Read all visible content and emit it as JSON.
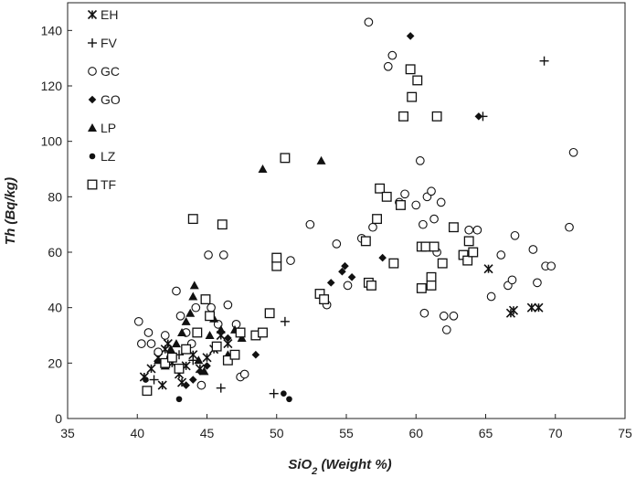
{
  "chart_data": {
    "type": "scatter",
    "title": "",
    "xlabel": "SiO2 (Weight %)",
    "xlabel_main": "SiO",
    "xlabel_sub": "2",
    "xlabel_rest": " (Weight %)",
    "ylabel": "Th (Bq/kg)",
    "xlim": [
      35,
      75
    ],
    "ylim": [
      0,
      150
    ],
    "x_ticks": [
      35,
      40,
      45,
      50,
      55,
      60,
      65,
      70,
      75
    ],
    "y_ticks": [
      0,
      20,
      40,
      60,
      80,
      100,
      120,
      140
    ],
    "grid": false,
    "legend_position": "top-left",
    "series": [
      {
        "name": "EH",
        "marker": "asterisk",
        "points": [
          [
            40.5,
            15
          ],
          [
            41,
            18
          ],
          [
            41.5,
            22
          ],
          [
            42,
            25
          ],
          [
            42.5,
            20
          ],
          [
            43,
            16
          ],
          [
            43.5,
            19
          ],
          [
            44,
            23
          ],
          [
            44.5,
            18
          ],
          [
            45,
            22
          ],
          [
            45.5,
            25
          ],
          [
            46,
            30
          ],
          [
            46.5,
            27
          ],
          [
            41.8,
            12
          ],
          [
            42.2,
            27
          ],
          [
            43.2,
            13
          ],
          [
            65.2,
            54
          ],
          [
            66.8,
            38
          ],
          [
            67,
            39
          ],
          [
            68.3,
            40
          ],
          [
            68.8,
            40
          ]
        ]
      },
      {
        "name": "FV",
        "marker": "plus",
        "points": [
          [
            41.2,
            14
          ],
          [
            43,
            23
          ],
          [
            44,
            21
          ],
          [
            46,
            11
          ],
          [
            49.8,
            9
          ],
          [
            50.6,
            35
          ],
          [
            64.8,
            109
          ],
          [
            69.2,
            129
          ]
        ]
      },
      {
        "name": "GC",
        "marker": "circle",
        "points": [
          [
            40.1,
            35
          ],
          [
            40.3,
            27
          ],
          [
            40.8,
            31
          ],
          [
            41,
            27
          ],
          [
            41.5,
            24
          ],
          [
            42,
            30
          ],
          [
            42.4,
            22
          ],
          [
            42.8,
            46
          ],
          [
            43.1,
            37
          ],
          [
            43.5,
            31
          ],
          [
            43.9,
            27
          ],
          [
            44.2,
            40
          ],
          [
            44.6,
            12
          ],
          [
            45.1,
            59
          ],
          [
            45.3,
            40
          ],
          [
            45.8,
            34
          ],
          [
            46.2,
            59
          ],
          [
            46.5,
            41
          ],
          [
            47.1,
            34
          ],
          [
            47.4,
            15
          ],
          [
            47.7,
            16
          ],
          [
            51,
            57
          ],
          [
            52.4,
            70
          ],
          [
            53.6,
            41
          ],
          [
            54.3,
            63
          ],
          [
            55.1,
            48
          ],
          [
            56.1,
            65
          ],
          [
            56.6,
            143
          ],
          [
            56.9,
            69
          ],
          [
            58,
            127
          ],
          [
            58.3,
            131
          ],
          [
            58.8,
            78
          ],
          [
            59.2,
            81
          ],
          [
            60,
            77
          ],
          [
            60.3,
            93
          ],
          [
            60.5,
            70
          ],
          [
            60.6,
            38
          ],
          [
            60.8,
            80
          ],
          [
            61.1,
            82
          ],
          [
            61.3,
            72
          ],
          [
            61.5,
            60
          ],
          [
            61.8,
            78
          ],
          [
            62,
            37
          ],
          [
            62.2,
            32
          ],
          [
            62.7,
            37
          ],
          [
            63.8,
            68
          ],
          [
            64.4,
            68
          ],
          [
            65.4,
            44
          ],
          [
            66.1,
            59
          ],
          [
            66.6,
            48
          ],
          [
            66.9,
            50
          ],
          [
            67.1,
            66
          ],
          [
            68.4,
            61
          ],
          [
            68.7,
            49
          ],
          [
            69.3,
            55
          ],
          [
            69.7,
            55
          ],
          [
            71,
            69
          ],
          [
            71.3,
            96
          ]
        ]
      },
      {
        "name": "GO",
        "marker": "diamond",
        "points": [
          [
            43.5,
            12
          ],
          [
            44,
            14
          ],
          [
            44.5,
            17
          ],
          [
            45,
            19
          ],
          [
            46.5,
            29
          ],
          [
            48.5,
            23
          ],
          [
            53.9,
            49
          ],
          [
            54.7,
            53
          ],
          [
            54.9,
            55
          ],
          [
            55.4,
            51
          ],
          [
            57.6,
            58
          ],
          [
            59.6,
            138
          ],
          [
            64.5,
            109
          ]
        ]
      },
      {
        "name": "LP",
        "marker": "triangle",
        "points": [
          [
            41.5,
            21
          ],
          [
            42,
            19
          ],
          [
            42.4,
            25
          ],
          [
            42.8,
            27
          ],
          [
            43.2,
            31
          ],
          [
            43.5,
            35
          ],
          [
            43.8,
            38
          ],
          [
            44,
            44
          ],
          [
            44.1,
            48
          ],
          [
            44.4,
            21
          ],
          [
            44.8,
            17
          ],
          [
            45.2,
            30
          ],
          [
            45.5,
            36
          ],
          [
            46,
            32
          ],
          [
            46.5,
            23
          ],
          [
            47,
            32
          ],
          [
            47.5,
            29
          ],
          [
            49,
            90
          ],
          [
            53.2,
            93
          ]
        ]
      },
      {
        "name": "LZ",
        "marker": "dot",
        "points": [
          [
            40.6,
            14
          ],
          [
            43,
            7
          ],
          [
            50.5,
            9
          ],
          [
            50.9,
            7
          ]
        ]
      },
      {
        "name": "TF",
        "marker": "square",
        "points": [
          [
            40.7,
            10
          ],
          [
            42,
            20
          ],
          [
            42.5,
            22
          ],
          [
            43,
            18
          ],
          [
            43.5,
            25
          ],
          [
            44,
            72
          ],
          [
            44.3,
            31
          ],
          [
            44.9,
            43
          ],
          [
            45.2,
            37
          ],
          [
            45.7,
            26
          ],
          [
            46.1,
            70
          ],
          [
            46.5,
            21
          ],
          [
            47,
            23
          ],
          [
            47.4,
            31
          ],
          [
            48.5,
            30
          ],
          [
            49,
            31
          ],
          [
            49.5,
            38
          ],
          [
            50,
            55
          ],
          [
            50,
            58
          ],
          [
            50.6,
            94
          ],
          [
            53.1,
            45
          ],
          [
            53.4,
            43
          ],
          [
            56.4,
            64
          ],
          [
            56.6,
            49
          ],
          [
            56.8,
            48
          ],
          [
            57.2,
            72
          ],
          [
            57.4,
            83
          ],
          [
            57.9,
            80
          ],
          [
            58.4,
            56
          ],
          [
            58.9,
            77
          ],
          [
            59.1,
            109
          ],
          [
            59.6,
            126
          ],
          [
            59.7,
            116
          ],
          [
            60.1,
            122
          ],
          [
            60.4,
            62
          ],
          [
            60.4,
            47
          ],
          [
            60.7,
            62
          ],
          [
            61.1,
            51
          ],
          [
            61.1,
            48
          ],
          [
            61.3,
            62
          ],
          [
            61.5,
            109
          ],
          [
            61.9,
            56
          ],
          [
            62.7,
            69
          ],
          [
            63.4,
            59
          ],
          [
            63.7,
            57
          ],
          [
            63.8,
            64
          ],
          [
            64.1,
            60
          ]
        ]
      }
    ]
  }
}
